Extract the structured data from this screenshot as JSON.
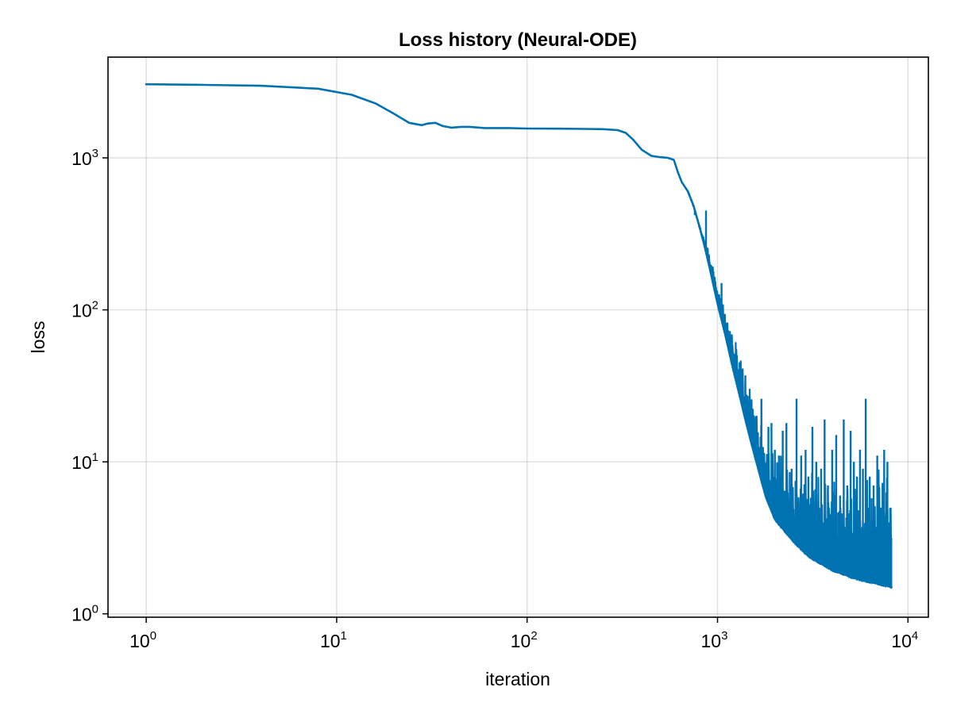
{
  "chart_data": {
    "type": "line",
    "title": "Loss history (Neural-ODE)",
    "xlabel": "iteration",
    "ylabel": "loss",
    "x_scale": "log10",
    "y_scale": "log10",
    "xlim": [
      0.63,
      12800
    ],
    "ylim": [
      0.95,
      4600
    ],
    "x_ticks": [
      {
        "value": 1,
        "base": "10",
        "exp": "0"
      },
      {
        "value": 10,
        "base": "10",
        "exp": "1"
      },
      {
        "value": 100,
        "base": "10",
        "exp": "2"
      },
      {
        "value": 1000,
        "base": "10",
        "exp": "3"
      },
      {
        "value": 10000,
        "base": "10",
        "exp": "4"
      }
    ],
    "y_ticks": [
      {
        "value": 1,
        "base": "10",
        "exp": "0"
      },
      {
        "value": 10,
        "base": "10",
        "exp": "1"
      },
      {
        "value": 100,
        "base": "10",
        "exp": "2"
      },
      {
        "value": 1000,
        "base": "10",
        "exp": "3"
      }
    ],
    "grid": true,
    "series": [
      {
        "color": "#0072b2",
        "trend": {
          "x": [
            1,
            2,
            4,
            8,
            12,
            16,
            20,
            24,
            28,
            30,
            33,
            36,
            40,
            45,
            50,
            60,
            80,
            100,
            150,
            200,
            250,
            300,
            330,
            360,
            400,
            450,
            500,
            550,
            590,
            620,
            650,
            700,
            750,
            800,
            850,
            900,
            1000,
            1100,
            1200,
            1300,
            1400,
            1500,
            1600,
            1700,
            1800,
            2000,
            2500,
            3000,
            4000,
            5000,
            6000,
            7000,
            8000,
            8200
          ],
          "y": [
            3050,
            3020,
            2980,
            2850,
            2600,
            2280,
            1950,
            1700,
            1640,
            1680,
            1700,
            1620,
            1580,
            1600,
            1600,
            1570,
            1570,
            1560,
            1555,
            1550,
            1545,
            1520,
            1460,
            1320,
            1130,
            1030,
            1010,
            1000,
            970,
            800,
            690,
            600,
            480,
            360,
            270,
            200,
            110,
            68,
            42,
            28,
            19,
            13.5,
            10,
            7.5,
            5.8,
            4.2,
            3.0,
            2.4,
            1.95,
            1.75,
            1.65,
            1.58,
            1.52,
            1.5
          ]
        },
        "spikes": {
          "x": [
            760,
            800,
            840,
            870,
            1050,
            1200,
            1280,
            1400,
            1550,
            1700,
            1850,
            1920,
            2000,
            2100,
            2200,
            2300,
            2450,
            2600,
            2750,
            2900,
            3000,
            3150,
            3300,
            3500,
            3650,
            3800,
            4000,
            4200,
            4400,
            4600,
            4800,
            5000,
            5200,
            5400,
            5600,
            5800,
            6000,
            6300,
            6600,
            6900,
            7200,
            7500,
            7800,
            8100
          ],
          "y": [
            420,
            350,
            300,
            450,
            150,
            55,
            40,
            37,
            20,
            26,
            17,
            18,
            12,
            11,
            16,
            18,
            9,
            26,
            11,
            12,
            8,
            17,
            10,
            9,
            19,
            7,
            12,
            15,
            6,
            19,
            7,
            16,
            10,
            8,
            12,
            9,
            26,
            8,
            7,
            11,
            5,
            12,
            10,
            4.5
          ]
        }
      }
    ]
  }
}
